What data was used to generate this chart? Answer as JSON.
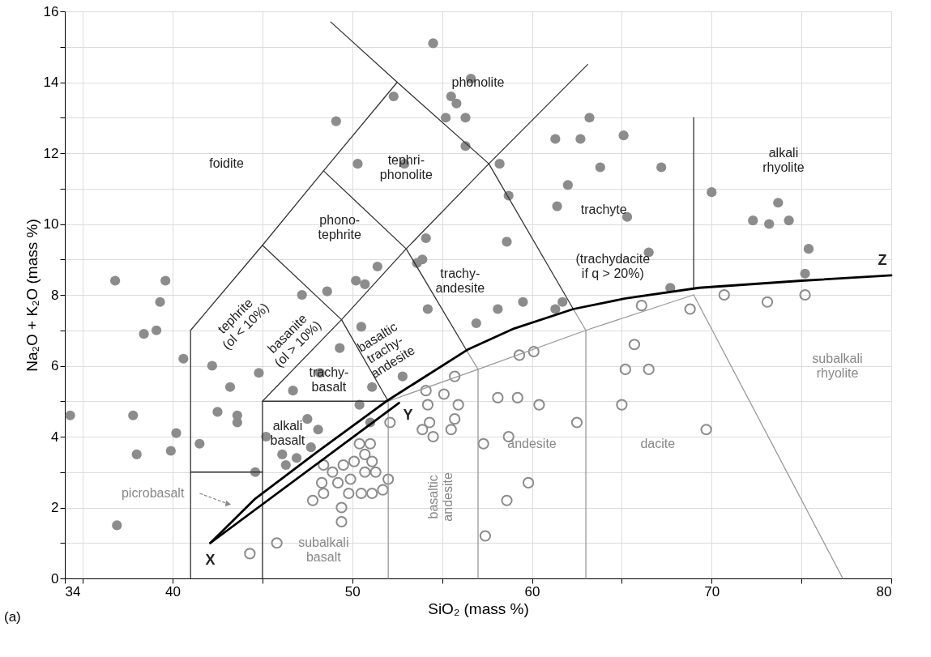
{
  "chart_data": {
    "type": "scatter",
    "xlabel": "SiO₂ (mass %)",
    "ylabel": "Na₂O + K₂O (mass %)",
    "xlim": [
      34,
      80
    ],
    "ylim": [
      0,
      16
    ],
    "xticks": [
      34,
      {
        "value": 35,
        "label": null
      },
      40,
      {
        "value": 45,
        "label": null
      },
      50,
      {
        "value": 55,
        "label": null
      },
      60,
      {
        "value": 65,
        "label": null
      },
      70,
      {
        "value": 75,
        "label": null
      },
      80
    ],
    "yticks": [
      0,
      {
        "value": 1,
        "label": null
      },
      2,
      {
        "value": 3,
        "label": null
      },
      4,
      {
        "value": 5,
        "label": null
      },
      6,
      {
        "value": 7,
        "label": null
      },
      8,
      {
        "value": 9,
        "label": null
      },
      10,
      {
        "value": 11,
        "label": null
      },
      12,
      {
        "value": 13,
        "label": null
      },
      14,
      {
        "value": 15,
        "label": null
      },
      16
    ],
    "grid": true,
    "series": [
      {
        "marker": "circle",
        "color": "#8c8c8c",
        "x": [
          36.8,
          39.6,
          39.3,
          39.1,
          38.4,
          40.6,
          42.2,
          43.2,
          42.5,
          43.6,
          43.6,
          34.3,
          37.8,
          40.2,
          39.9,
          38.0,
          41.5,
          44.6,
          36.9,
          47.2,
          48.6,
          48.2,
          46.7,
          44.8,
          47.5,
          45.2,
          46.1,
          46.9,
          48.1,
          46.3,
          47.7,
          51.4,
          50.2,
          50.7,
          53.6,
          54.2,
          56.9,
          58.1,
          50.5,
          49.3,
          52.8,
          51.1,
          50.4,
          51.0,
          54.5,
          56.6,
          52.3,
          55.5,
          55.8,
          56.3,
          55.2,
          56.3,
          49.1,
          50.3,
          52.9,
          58.2,
          58.7,
          63.2,
          61.3,
          62.7,
          65.1,
          63.8,
          62.0,
          61.4,
          58.6,
          54.1,
          53.9,
          67.2,
          65.3,
          70.0,
          73.7,
          72.3,
          73.2,
          74.3,
          75.4,
          75.2,
          66.5,
          67.7,
          59.5,
          61.7,
          61.3
        ],
        "values": [
          8.4,
          8.4,
          7.8,
          7.0,
          6.9,
          6.2,
          6.0,
          5.4,
          4.7,
          4.6,
          4.4,
          4.6,
          4.6,
          4.1,
          3.6,
          3.5,
          3.8,
          3.0,
          1.5,
          8.0,
          8.1,
          5.8,
          5.3,
          5.8,
          4.5,
          4.0,
          3.5,
          3.4,
          4.2,
          3.2,
          3.7,
          8.8,
          8.4,
          8.3,
          8.9,
          7.6,
          7.2,
          7.6,
          7.1,
          6.5,
          5.7,
          5.4,
          4.9,
          4.4,
          15.1,
          14.1,
          13.6,
          13.6,
          13.4,
          13.0,
          13.0,
          12.2,
          12.9,
          11.7,
          11.7,
          11.7,
          10.8,
          13.0,
          12.4,
          12.4,
          12.5,
          11.6,
          11.1,
          10.5,
          9.5,
          9.6,
          9.0,
          11.6,
          10.2,
          10.9,
          10.6,
          10.1,
          10.0,
          10.1,
          9.3,
          8.6,
          9.2,
          8.2,
          7.8,
          7.8,
          7.6
        ]
      },
      {
        "marker": "circle",
        "color": "#8c8c8c",
        "x": [
          66.1,
          68.8,
          70.7,
          73.1,
          75.2,
          65.7,
          65.2,
          66.5,
          65.0,
          69.7,
          62.5,
          60.4,
          59.2,
          58.1,
          60.1,
          59.3,
          58.7,
          57.3,
          59.8,
          58.6,
          57.4,
          55.7,
          55.1,
          54.1,
          54.2,
          55.9,
          55.7,
          55.5,
          54.3,
          53.9,
          54.5,
          52.1,
          52.0,
          51.7,
          51.1,
          51.0,
          50.4,
          50.7,
          50.1,
          51.1,
          51.3,
          50.7,
          49.5,
          48.9,
          48.3,
          49.2,
          49.9,
          50.5,
          49.8,
          48.4,
          47.8,
          49.4,
          49.4,
          45.8,
          44.3,
          48.4
        ],
        "values": [
          7.7,
          7.6,
          8.0,
          7.8,
          8.0,
          6.6,
          5.9,
          5.9,
          4.9,
          4.2,
          4.4,
          4.9,
          5.1,
          5.1,
          6.4,
          6.3,
          4.0,
          3.8,
          2.7,
          2.2,
          1.2,
          5.7,
          5.2,
          5.3,
          4.9,
          4.9,
          4.5,
          4.2,
          4.4,
          4.2,
          4.0,
          4.4,
          2.8,
          2.5,
          2.4,
          3.8,
          3.8,
          3.5,
          3.3,
          3.3,
          3.0,
          3.0,
          3.2,
          3.0,
          2.7,
          2.7,
          2.8,
          2.4,
          2.4,
          2.4,
          2.2,
          2.0,
          1.6,
          1.0,
          0.7,
          3.2
        ]
      },
      {
        "type": "line",
        "color": "#333333",
        "x": [
          41,
          41,
          45,
          48.4,
          52.5,
          48.8
        ],
        "values": [
          0,
          7,
          9.4,
          11.5,
          14,
          15.7
        ]
      },
      {
        "type": "line",
        "color": "#333333",
        "x": [
          41,
          45
        ],
        "values": [
          3,
          3
        ]
      },
      {
        "type": "line",
        "color": "#333333",
        "x": [
          45,
          45,
          52
        ],
        "values": [
          0,
          5,
          5
        ]
      },
      {
        "type": "line",
        "color": "#333333",
        "x": [
          45,
          49.4,
          52
        ],
        "values": [
          9.4,
          7.3,
          5
        ]
      },
      {
        "type": "line",
        "color": "#333333",
        "x": [
          45,
          49.4,
          53,
          57.6,
          63.1
        ],
        "values": [
          5,
          7.3,
          9.3,
          11.7,
          14.5
        ]
      },
      {
        "type": "line",
        "color": "#333333",
        "x": [
          48.4,
          53,
          56.4
        ],
        "values": [
          11.5,
          9.3,
          6.4
        ]
      },
      {
        "type": "line",
        "color": "#333333",
        "x": [
          52.5,
          57.6,
          62.3
        ],
        "values": [
          14,
          11.7,
          7.6
        ]
      },
      {
        "type": "line",
        "color": "#333333",
        "x": [
          69,
          69
        ],
        "values": [
          8.2,
          13
        ]
      },
      {
        "type": "line",
        "color": "#999999",
        "x": [
          52,
          52
        ],
        "values": [
          0,
          5
        ]
      },
      {
        "type": "line",
        "color": "#999999",
        "x": [
          52,
          57,
          63,
          69
        ],
        "values": [
          5,
          5.9,
          7,
          8
        ]
      },
      {
        "type": "line",
        "color": "#999999",
        "x": [
          57,
          57
        ],
        "values": [
          0,
          5.9
        ]
      },
      {
        "type": "line",
        "color": "#999999",
        "x": [
          63,
          63
        ],
        "values": [
          0,
          7
        ]
      },
      {
        "type": "line",
        "color": "#999999",
        "x": [
          69,
          77.3
        ],
        "values": [
          8,
          0
        ]
      },
      {
        "type": "line",
        "color": "#999999",
        "x": [
          56.4,
          57
        ],
        "values": [
          6.4,
          5.9
        ]
      },
      {
        "type": "line",
        "color": "#999999",
        "x": [
          62.3,
          63
        ],
        "values": [
          7.6,
          7
        ]
      },
      {
        "type": "line",
        "color": "#000000",
        "x": [
          42.1,
          44.6,
          48,
          51.9,
          56.4,
          59,
          62.3,
          65.2,
          69.3,
          75,
          80
        ],
        "values": [
          1.0,
          2.25,
          3.55,
          5.0,
          6.45,
          7.05,
          7.6,
          7.9,
          8.2,
          8.4,
          8.55
        ]
      },
      {
        "type": "line",
        "color": "#000000",
        "x": [
          42.1,
          52.6
        ],
        "values": [
          1.0,
          4.95
        ]
      }
    ],
    "annotations": [
      "foidite",
      "phonolite",
      "tephri-\nphonolite",
      "phono-\ntephrite",
      "tephrite\n(ol < 10%)",
      "basanite\n(ol > 10%)",
      "trachy-\nbasalt",
      "alkali\nbasalt",
      "basaltic\ntrachy-\nandesite",
      "trachy-\nandesite",
      "trachyte",
      "(trachydacite\nif q > 20%)",
      "alkali\nrhyolite",
      "picrobasalt",
      "subalkali\nbasalt",
      "basaltic\nandesite",
      "andesite",
      "dacite",
      "subalkali\nrhyolite",
      "X",
      "Y",
      "Z",
      "(a)"
    ]
  }
}
